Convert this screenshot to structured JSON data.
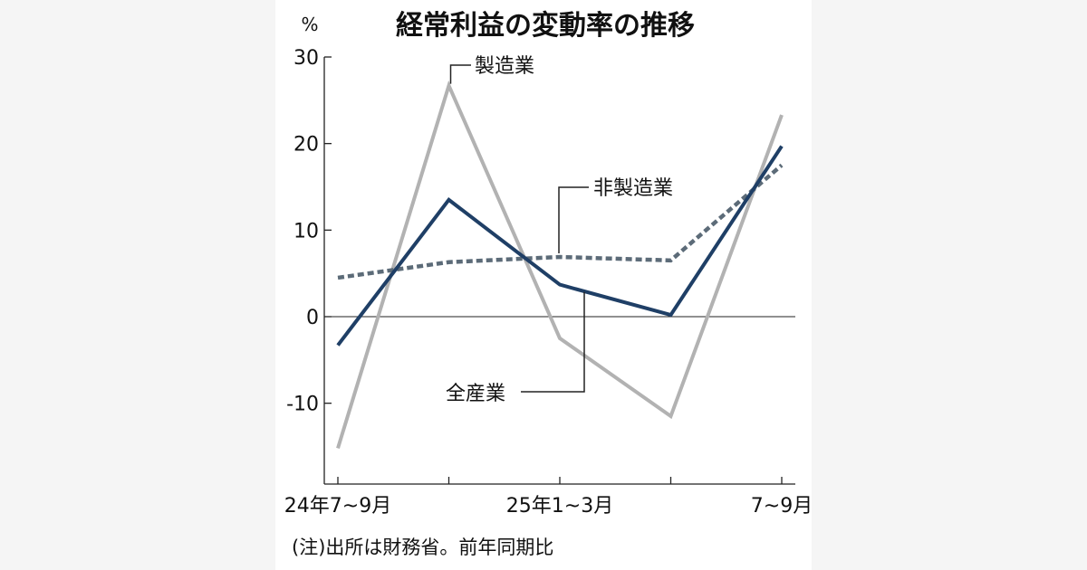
{
  "chart_data": {
    "type": "line",
    "title": "経常利益の変動率の推移",
    "unit": "%",
    "x": [
      "24年7~9月",
      "",
      "25年1~3月",
      "",
      "7~9月"
    ],
    "x_tick_labels": [
      "24年7~9月",
      "25年1~3月",
      "7~9月"
    ],
    "ylim": [
      -18,
      30
    ],
    "yticks": [
      30,
      20,
      10,
      0,
      -10
    ],
    "ytick_labels": [
      "30",
      "20",
      "10",
      "0",
      "-10"
    ],
    "grid": false,
    "series": [
      {
        "name": "製造業",
        "values": [
          -15.2,
          26.7,
          -2.5,
          -11.5,
          23.3
        ],
        "color": "#b2b2b2",
        "style": "solid"
      },
      {
        "name": "非製造業",
        "values": [
          4.5,
          6.3,
          6.9,
          6.5,
          17.5
        ],
        "color": "#5c6b78",
        "style": "dashed"
      },
      {
        "name": "全産業",
        "values": [
          -3.3,
          13.5,
          3.7,
          0.2,
          19.7
        ],
        "color": "#1f3f66",
        "style": "solid"
      }
    ],
    "note": "(注)出所は財務省。前年同期比"
  }
}
